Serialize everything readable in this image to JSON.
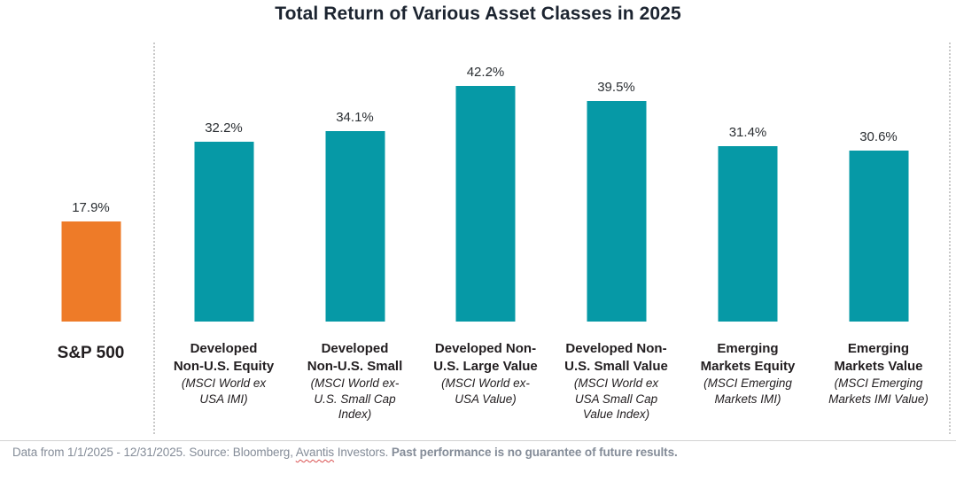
{
  "title": "Total Return of Various Asset Classes in 2025",
  "chart_data": {
    "type": "bar",
    "title": "Total Return of Various Asset Classes in 2025",
    "categories": [
      "S&P 500",
      "Developed Non-U.S. Equity (MSCI World ex USA IMI)",
      "Developed Non-U.S. Small (MSCI World ex-U.S. Small Cap Index)",
      "Developed Non-U.S. Large Value (MSCI World ex-USA Value)",
      "Developed Non-U.S. Small Value (MSCI World ex USA Small Cap Value Index)",
      "Emerging Markets Equity (MSCI Emerging Markets IMI)",
      "Emerging Markets Value (MSCI Emerging Markets IMI Value)"
    ],
    "values": [
      17.9,
      32.2,
      34.1,
      42.2,
      39.5,
      31.4,
      30.6
    ],
    "unit": "%",
    "xlabel": "",
    "ylabel": "",
    "ylim": [
      0,
      45
    ],
    "grid": false,
    "legend": "none",
    "bar_colors": [
      "#ee7b28",
      "#0699a6",
      "#0699a6",
      "#0699a6",
      "#0699a6",
      "#0699a6",
      "#0699a6"
    ]
  },
  "chart": {
    "bars": [
      {
        "value": 17.9,
        "value_label": "17.9%",
        "name": "S&P 500",
        "sub": "",
        "color": "#ee7b28"
      },
      {
        "value": 32.2,
        "value_label": "32.2%",
        "name": "Developed\nNon-U.S. Equity",
        "sub": "(MSCI World ex\nUSA IMI)",
        "color": "#0699a6"
      },
      {
        "value": 34.1,
        "value_label": "34.1%",
        "name": "Developed\nNon-U.S. Small",
        "sub": "(MSCI World ex-\nU.S. Small Cap\nIndex)",
        "color": "#0699a6"
      },
      {
        "value": 42.2,
        "value_label": "42.2%",
        "name": "Developed Non-\nU.S. Large Value",
        "sub": "(MSCI World ex-\nUSA Value)",
        "color": "#0699a6"
      },
      {
        "value": 39.5,
        "value_label": "39.5%",
        "name": "Developed Non-\nU.S. Small Value",
        "sub": "(MSCI World ex\nUSA Small Cap\nValue Index)",
        "color": "#0699a6"
      },
      {
        "value": 31.4,
        "value_label": "31.4%",
        "name": "Emerging\nMarkets Equity",
        "sub": "(MSCI Emerging\nMarkets IMI)",
        "color": "#0699a6"
      },
      {
        "value": 30.6,
        "value_label": "30.6%",
        "name": "Emerging\nMarkets Value",
        "sub": "(MSCI Emerging\nMarkets IMI Value)",
        "color": "#0699a6"
      }
    ]
  },
  "footer": {
    "text_part1": "Data from 1/1/2025 - 12/31/2025. Source: Bloomberg, ",
    "misspelled_word": "Avantis",
    "text_part2": " Investors. ",
    "bold_text": "Past performance is no guarantee of future results."
  },
  "colors": {
    "accent_orange": "#ee7b28",
    "accent_teal": "#0699a6",
    "title_text": "#1c2430",
    "label_text": "#221e20",
    "footer_text": "#848c98",
    "divider": "#c9c9c9",
    "squiggle_red": "#d94f4f"
  }
}
